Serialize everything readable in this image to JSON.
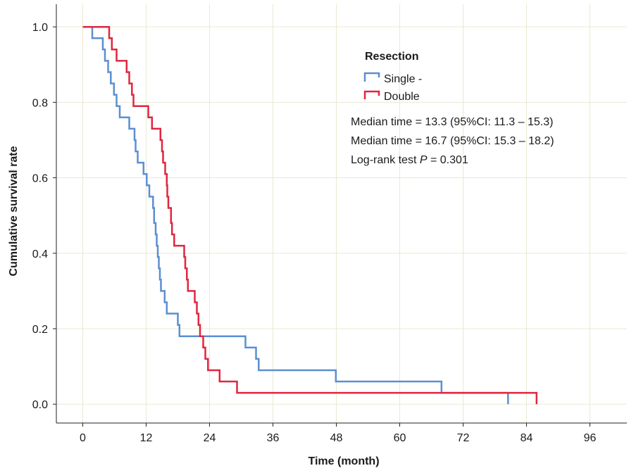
{
  "chart_data": {
    "type": "line",
    "subtype": "kaplan-meier-step",
    "xlabel": "Time (month)",
    "ylabel": "Cumulative survival rate",
    "xlim": [
      -5,
      103
    ],
    "ylim": [
      -0.05,
      1.06
    ],
    "xticks": [
      0,
      12,
      24,
      36,
      48,
      60,
      72,
      84,
      96
    ],
    "xtick_labels": [
      "0",
      "12",
      "24",
      "36",
      "48",
      "60",
      "72",
      "84",
      "96"
    ],
    "yticks": [
      0.0,
      0.2,
      0.4,
      0.6,
      0.8,
      1.0
    ],
    "ytick_labels": [
      "0.0",
      "0.2",
      "0.4",
      "0.6",
      "0.8",
      "1.0"
    ],
    "grid": true,
    "legend": {
      "title": "Resection",
      "placement": "top-right"
    },
    "series": [
      {
        "name": "Single -",
        "color": "#5b8fd1",
        "points": [
          [
            0,
            1.0
          ],
          [
            1.8,
            0.97
          ],
          [
            3.8,
            0.94
          ],
          [
            4.2,
            0.91
          ],
          [
            4.8,
            0.88
          ],
          [
            5.3,
            0.85
          ],
          [
            5.9,
            0.82
          ],
          [
            6.4,
            0.79
          ],
          [
            7.0,
            0.76
          ],
          [
            8.8,
            0.73
          ],
          [
            9.8,
            0.7
          ],
          [
            10.0,
            0.67
          ],
          [
            10.4,
            0.64
          ],
          [
            11.5,
            0.61
          ],
          [
            12.1,
            0.58
          ],
          [
            12.6,
            0.55
          ],
          [
            13.3,
            0.52
          ],
          [
            13.5,
            0.48
          ],
          [
            13.8,
            0.45
          ],
          [
            14.0,
            0.42
          ],
          [
            14.2,
            0.39
          ],
          [
            14.4,
            0.36
          ],
          [
            14.6,
            0.33
          ],
          [
            14.8,
            0.3
          ],
          [
            15.5,
            0.27
          ],
          [
            15.9,
            0.24
          ],
          [
            18.0,
            0.21
          ],
          [
            18.3,
            0.18
          ],
          [
            30.8,
            0.15
          ],
          [
            32.8,
            0.12
          ],
          [
            33.3,
            0.09
          ],
          [
            47.9,
            0.06
          ],
          [
            67.9,
            0.03
          ],
          [
            80.5,
            0.0
          ]
        ],
        "end_x": 80.5
      },
      {
        "name": "Double",
        "color": "#e0263f",
        "points": [
          [
            0,
            1.0
          ],
          [
            5.0,
            0.97
          ],
          [
            5.5,
            0.94
          ],
          [
            6.4,
            0.91
          ],
          [
            8.3,
            0.88
          ],
          [
            8.8,
            0.85
          ],
          [
            9.3,
            0.82
          ],
          [
            9.6,
            0.79
          ],
          [
            12.4,
            0.76
          ],
          [
            13.1,
            0.73
          ],
          [
            14.7,
            0.7
          ],
          [
            15.0,
            0.67
          ],
          [
            15.2,
            0.64
          ],
          [
            15.6,
            0.61
          ],
          [
            15.9,
            0.58
          ],
          [
            16.0,
            0.55
          ],
          [
            16.2,
            0.52
          ],
          [
            16.7,
            0.48
          ],
          [
            16.9,
            0.45
          ],
          [
            17.3,
            0.42
          ],
          [
            19.2,
            0.39
          ],
          [
            19.4,
            0.36
          ],
          [
            19.7,
            0.33
          ],
          [
            19.9,
            0.3
          ],
          [
            21.2,
            0.27
          ],
          [
            21.6,
            0.24
          ],
          [
            21.9,
            0.21
          ],
          [
            22.2,
            0.18
          ],
          [
            22.8,
            0.15
          ],
          [
            23.2,
            0.12
          ],
          [
            23.7,
            0.09
          ],
          [
            25.9,
            0.06
          ],
          [
            29.2,
            0.03
          ],
          [
            85.9,
            0.0
          ]
        ],
        "end_x": 85.9
      }
    ],
    "annotations": [
      "Median time = 13.3 (95%CI: 11.3 – 15.3)",
      "Median time = 16.7 (95%CI: 15.3 – 18.2)"
    ],
    "logrank": {
      "prefix": "Log-rank test ",
      "p_symbol": "P",
      "suffix": " = 0.301"
    }
  }
}
